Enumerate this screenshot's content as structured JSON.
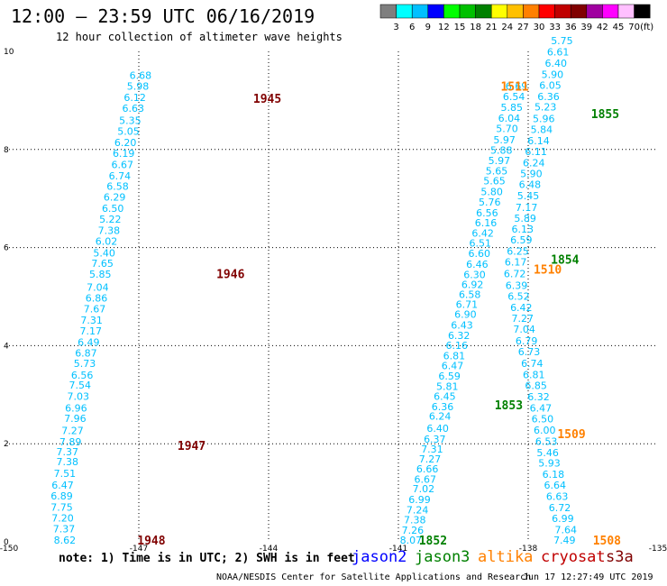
{
  "header": {
    "title": "12:00 – 23:59 UTC 06/16/2019",
    "subtitle": "12 hour collection of altimeter wave heights"
  },
  "legend": {
    "unit": "(ft)",
    "bins": [
      {
        "label": "3",
        "color": "#7f7f7f"
      },
      {
        "label": "6",
        "color": "#00ffff"
      },
      {
        "label": "9",
        "color": "#00c0ff"
      },
      {
        "label": "12",
        "color": "#0000ff"
      },
      {
        "label": "15",
        "color": "#00ff00"
      },
      {
        "label": "18",
        "color": "#00c000"
      },
      {
        "label": "21",
        "color": "#008000"
      },
      {
        "label": "24",
        "color": "#ffff00"
      },
      {
        "label": "27",
        "color": "#ffc000"
      },
      {
        "label": "30",
        "color": "#ff8000"
      },
      {
        "label": "33",
        "color": "#ff0000"
      },
      {
        "label": "36",
        "color": "#c00000"
      },
      {
        "label": "39",
        "color": "#800000"
      },
      {
        "label": "42",
        "color": "#a000a0"
      },
      {
        "label": "45",
        "color": "#ff00ff"
      },
      {
        "label": "70",
        "color": "#ffc0ff"
      },
      {
        "label": "",
        "color": "#000000"
      }
    ]
  },
  "chart_data": {
    "type": "scatter",
    "xlim": [
      -150,
      -135
    ],
    "ylim": [
      0,
      10
    ],
    "x_ticks": [
      -150,
      -147,
      -144,
      -141,
      -138,
      -135
    ],
    "x_tick_labels": [
      "-150",
      "-147",
      "-144",
      "-141",
      "-138",
      "-135"
    ],
    "y_ticks": [
      0,
      2,
      4,
      6,
      8,
      10
    ],
    "y_tick_labels": [
      "0",
      "2",
      "4",
      "6",
      "8",
      "10"
    ],
    "grid": true,
    "series": [
      {
        "track_color": "#00c0ff",
        "points": [
          [
            -148.71,
            0.04,
            "8.62"
          ],
          [
            -148.73,
            0.27,
            "7.37"
          ],
          [
            -148.76,
            0.49,
            "7.20"
          ],
          [
            -148.78,
            0.71,
            "7.75"
          ],
          [
            -148.78,
            0.94,
            "6.89"
          ],
          [
            -148.76,
            1.16,
            "6.47"
          ],
          [
            -148.71,
            1.4,
            "7.51"
          ],
          [
            -148.65,
            1.64,
            "7.38"
          ],
          [
            -148.65,
            1.84,
            "7.37"
          ],
          [
            -148.58,
            2.04,
            "7.89"
          ],
          [
            -148.53,
            2.27,
            "7.27"
          ],
          [
            -148.47,
            2.52,
            "7.96"
          ],
          [
            -148.45,
            2.73,
            "6.96"
          ],
          [
            -148.4,
            2.97,
            "7.03"
          ],
          [
            -148.36,
            3.2,
            "7.54"
          ],
          [
            -148.31,
            3.4,
            "6.56"
          ],
          [
            -148.25,
            3.64,
            "5.73"
          ],
          [
            -148.22,
            3.85,
            "6.87"
          ],
          [
            -148.16,
            4.07,
            "6.49"
          ],
          [
            -148.11,
            4.3,
            "7.17"
          ],
          [
            -148.09,
            4.52,
            "7.31"
          ],
          [
            -148.02,
            4.75,
            "7.67"
          ],
          [
            -147.98,
            4.97,
            "6.86"
          ],
          [
            -147.95,
            5.19,
            "7.04"
          ],
          [
            -147.89,
            5.46,
            "5.85"
          ],
          [
            -147.84,
            5.68,
            "7.65"
          ],
          [
            -147.8,
            5.89,
            "5.40"
          ],
          [
            -147.75,
            6.13,
            "6.02"
          ],
          [
            -147.69,
            6.35,
            "7.38"
          ],
          [
            -147.66,
            6.58,
            "5.22"
          ],
          [
            -147.6,
            6.8,
            "6.50"
          ],
          [
            -147.56,
            7.03,
            "6.29"
          ],
          [
            -147.49,
            7.25,
            "6.58"
          ],
          [
            -147.44,
            7.46,
            "6.74"
          ],
          [
            -147.38,
            7.69,
            "6.67"
          ],
          [
            -147.35,
            7.92,
            "6.19"
          ],
          [
            -147.31,
            8.14,
            "6.20"
          ],
          [
            -147.24,
            8.37,
            "5.05"
          ],
          [
            -147.2,
            8.59,
            "5.35"
          ],
          [
            -147.13,
            8.84,
            "6.63"
          ],
          [
            -147.09,
            9.06,
            "6.12"
          ],
          [
            -147.02,
            9.29,
            "5.98"
          ],
          [
            -146.96,
            9.51,
            "6.68"
          ]
        ]
      },
      {
        "track_color": "#00c0ff",
        "points": [
          [
            -140.71,
            0.04,
            "8.07"
          ],
          [
            -140.67,
            0.24,
            "7.26"
          ],
          [
            -140.62,
            0.45,
            "7.38"
          ],
          [
            -140.56,
            0.65,
            "7.24"
          ],
          [
            -140.51,
            0.86,
            "6.99"
          ],
          [
            -140.42,
            1.08,
            "7.02"
          ],
          [
            -140.38,
            1.28,
            "6.67"
          ],
          [
            -140.33,
            1.49,
            "6.66"
          ],
          [
            -140.27,
            1.69,
            "7.27"
          ],
          [
            -140.22,
            1.89,
            "7.31"
          ],
          [
            -140.16,
            2.1,
            "6.37"
          ],
          [
            -140.09,
            2.32,
            "6.40"
          ],
          [
            -140.04,
            2.56,
            "6.24"
          ],
          [
            -139.98,
            2.76,
            "6.36"
          ],
          [
            -139.93,
            2.97,
            "6.45"
          ],
          [
            -139.87,
            3.17,
            "5.81"
          ],
          [
            -139.82,
            3.38,
            "6.59"
          ],
          [
            -139.75,
            3.59,
            "6.47"
          ],
          [
            -139.71,
            3.8,
            "6.81"
          ],
          [
            -139.65,
            4.01,
            "6.16"
          ],
          [
            -139.6,
            4.21,
            "6.32"
          ],
          [
            -139.53,
            4.42,
            "6.43"
          ],
          [
            -139.45,
            4.64,
            "6.90"
          ],
          [
            -139.42,
            4.84,
            "6.71"
          ],
          [
            -139.35,
            5.05,
            "6.58"
          ],
          [
            -139.29,
            5.25,
            "6.92"
          ],
          [
            -139.24,
            5.45,
            "6.30"
          ],
          [
            -139.18,
            5.66,
            "6.46"
          ],
          [
            -139.13,
            5.88,
            "6.60"
          ],
          [
            -139.11,
            6.09,
            "6.51"
          ],
          [
            -139.05,
            6.3,
            "6.42"
          ],
          [
            -138.98,
            6.51,
            "6.16"
          ],
          [
            -138.95,
            6.71,
            "6.56"
          ],
          [
            -138.89,
            6.93,
            "5.76"
          ],
          [
            -138.84,
            7.14,
            "5.80"
          ],
          [
            -138.78,
            7.36,
            "5.65"
          ],
          [
            -138.73,
            7.56,
            "5.65"
          ],
          [
            -138.67,
            7.78,
            "5.97"
          ],
          [
            -138.62,
            7.99,
            "5.88"
          ],
          [
            -138.55,
            8.2,
            "5.97"
          ],
          [
            -138.49,
            8.43,
            "5.70"
          ],
          [
            -138.44,
            8.64,
            "6.04"
          ],
          [
            -138.38,
            8.86,
            "5.85"
          ],
          [
            -138.33,
            9.08,
            "6.54"
          ],
          [
            -138.27,
            9.29,
            "6.69"
          ]
        ]
      },
      {
        "track_color": "#00c0ff",
        "points": [
          [
            -137.16,
            0.04,
            "7.49"
          ],
          [
            -137.13,
            0.25,
            "7.64"
          ],
          [
            -137.2,
            0.48,
            "6.99"
          ],
          [
            -137.27,
            0.7,
            "6.72"
          ],
          [
            -137.33,
            0.93,
            "6.63"
          ],
          [
            -137.38,
            1.16,
            "6.64"
          ],
          [
            -137.42,
            1.38,
            "6.18"
          ],
          [
            -137.51,
            1.61,
            "5.93"
          ],
          [
            -137.55,
            1.82,
            "5.46"
          ],
          [
            -137.58,
            2.05,
            "6.53"
          ],
          [
            -137.62,
            2.28,
            "6.00"
          ],
          [
            -137.67,
            2.51,
            "6.50"
          ],
          [
            -137.71,
            2.73,
            "6.47"
          ],
          [
            -137.76,
            2.96,
            "6.32"
          ],
          [
            -137.82,
            3.19,
            "6.85"
          ],
          [
            -137.87,
            3.41,
            "6.81"
          ],
          [
            -137.91,
            3.64,
            "6.74"
          ],
          [
            -137.98,
            3.88,
            "6.73"
          ],
          [
            -138.04,
            4.1,
            "6.79"
          ],
          [
            -138.09,
            4.34,
            "7.04"
          ],
          [
            -138.13,
            4.56,
            "7.27"
          ],
          [
            -138.16,
            4.78,
            "6.42"
          ],
          [
            -138.22,
            5.01,
            "6.52"
          ],
          [
            -138.27,
            5.23,
            "6.39"
          ],
          [
            -138.31,
            5.47,
            "6.72"
          ],
          [
            -138.29,
            5.71,
            "6.17"
          ],
          [
            -138.24,
            5.93,
            "6.25"
          ],
          [
            -138.16,
            6.16,
            "6.59"
          ],
          [
            -138.13,
            6.38,
            "6.13"
          ],
          [
            -138.07,
            6.6,
            "5.89"
          ],
          [
            -138.04,
            6.82,
            "7.17"
          ],
          [
            -138.0,
            7.06,
            "5.45"
          ],
          [
            -137.96,
            7.29,
            "6.48"
          ],
          [
            -137.93,
            7.51,
            "5.90"
          ],
          [
            -137.87,
            7.73,
            "6.24"
          ],
          [
            -137.82,
            7.96,
            "6.11"
          ],
          [
            -137.76,
            8.18,
            "6.14"
          ],
          [
            -137.69,
            8.41,
            "5.84"
          ],
          [
            -137.64,
            8.63,
            "5.96"
          ],
          [
            -137.6,
            8.87,
            "5.23"
          ],
          [
            -137.53,
            9.08,
            "6.36"
          ],
          [
            -137.49,
            9.31,
            "6.05"
          ],
          [
            -137.44,
            9.53,
            "5.90"
          ],
          [
            -137.36,
            9.76,
            "6.40"
          ],
          [
            -137.31,
            9.99,
            "6.61"
          ],
          [
            -137.22,
            10.22,
            "5.75"
          ]
        ]
      }
    ],
    "time_labels": [
      {
        "x": -144.03,
        "y": 9.04,
        "text": "1945",
        "color": "#800000"
      },
      {
        "x": -144.88,
        "y": 5.47,
        "text": "1946",
        "color": "#800000"
      },
      {
        "x": -145.78,
        "y": 1.97,
        "text": "1947",
        "color": "#800000"
      },
      {
        "x": -146.71,
        "y": 0.04,
        "text": "1948",
        "color": "#800000"
      },
      {
        "x": -138.31,
        "y": 9.29,
        "text": "1511",
        "color": "#ff8000"
      },
      {
        "x": -137.55,
        "y": 5.56,
        "text": "1510",
        "color": "#ff8000"
      },
      {
        "x": -137.0,
        "y": 2.21,
        "text": "1509",
        "color": "#ff8000"
      },
      {
        "x": -136.18,
        "y": 0.04,
        "text": "1508",
        "color": "#ff8000"
      },
      {
        "x": -136.22,
        "y": 8.73,
        "text": "1855",
        "color": "#008000"
      },
      {
        "x": -137.15,
        "y": 5.76,
        "text": "1854",
        "color": "#008000"
      },
      {
        "x": -138.45,
        "y": 2.79,
        "text": "1853",
        "color": "#008000"
      },
      {
        "x": -140.2,
        "y": 0.04,
        "text": "1852",
        "color": "#008000"
      }
    ]
  },
  "footer": {
    "note": "note: 1) Time is in UTC; 2) SWH is in feet",
    "satellites": [
      {
        "label": "jason2",
        "color": "#0000ff"
      },
      {
        "label": "jason3",
        "color": "#008000"
      },
      {
        "label": "altika",
        "color": "#ff8000"
      },
      {
        "label": "cryosat",
        "color": "#c00000"
      },
      {
        "label": "s3a",
        "color": "#800000"
      }
    ],
    "source": "NOAA/NESDIS Center for Satellite Applications and Research",
    "timestamp": "Jun 17 12:27:49 UTC 2019"
  }
}
